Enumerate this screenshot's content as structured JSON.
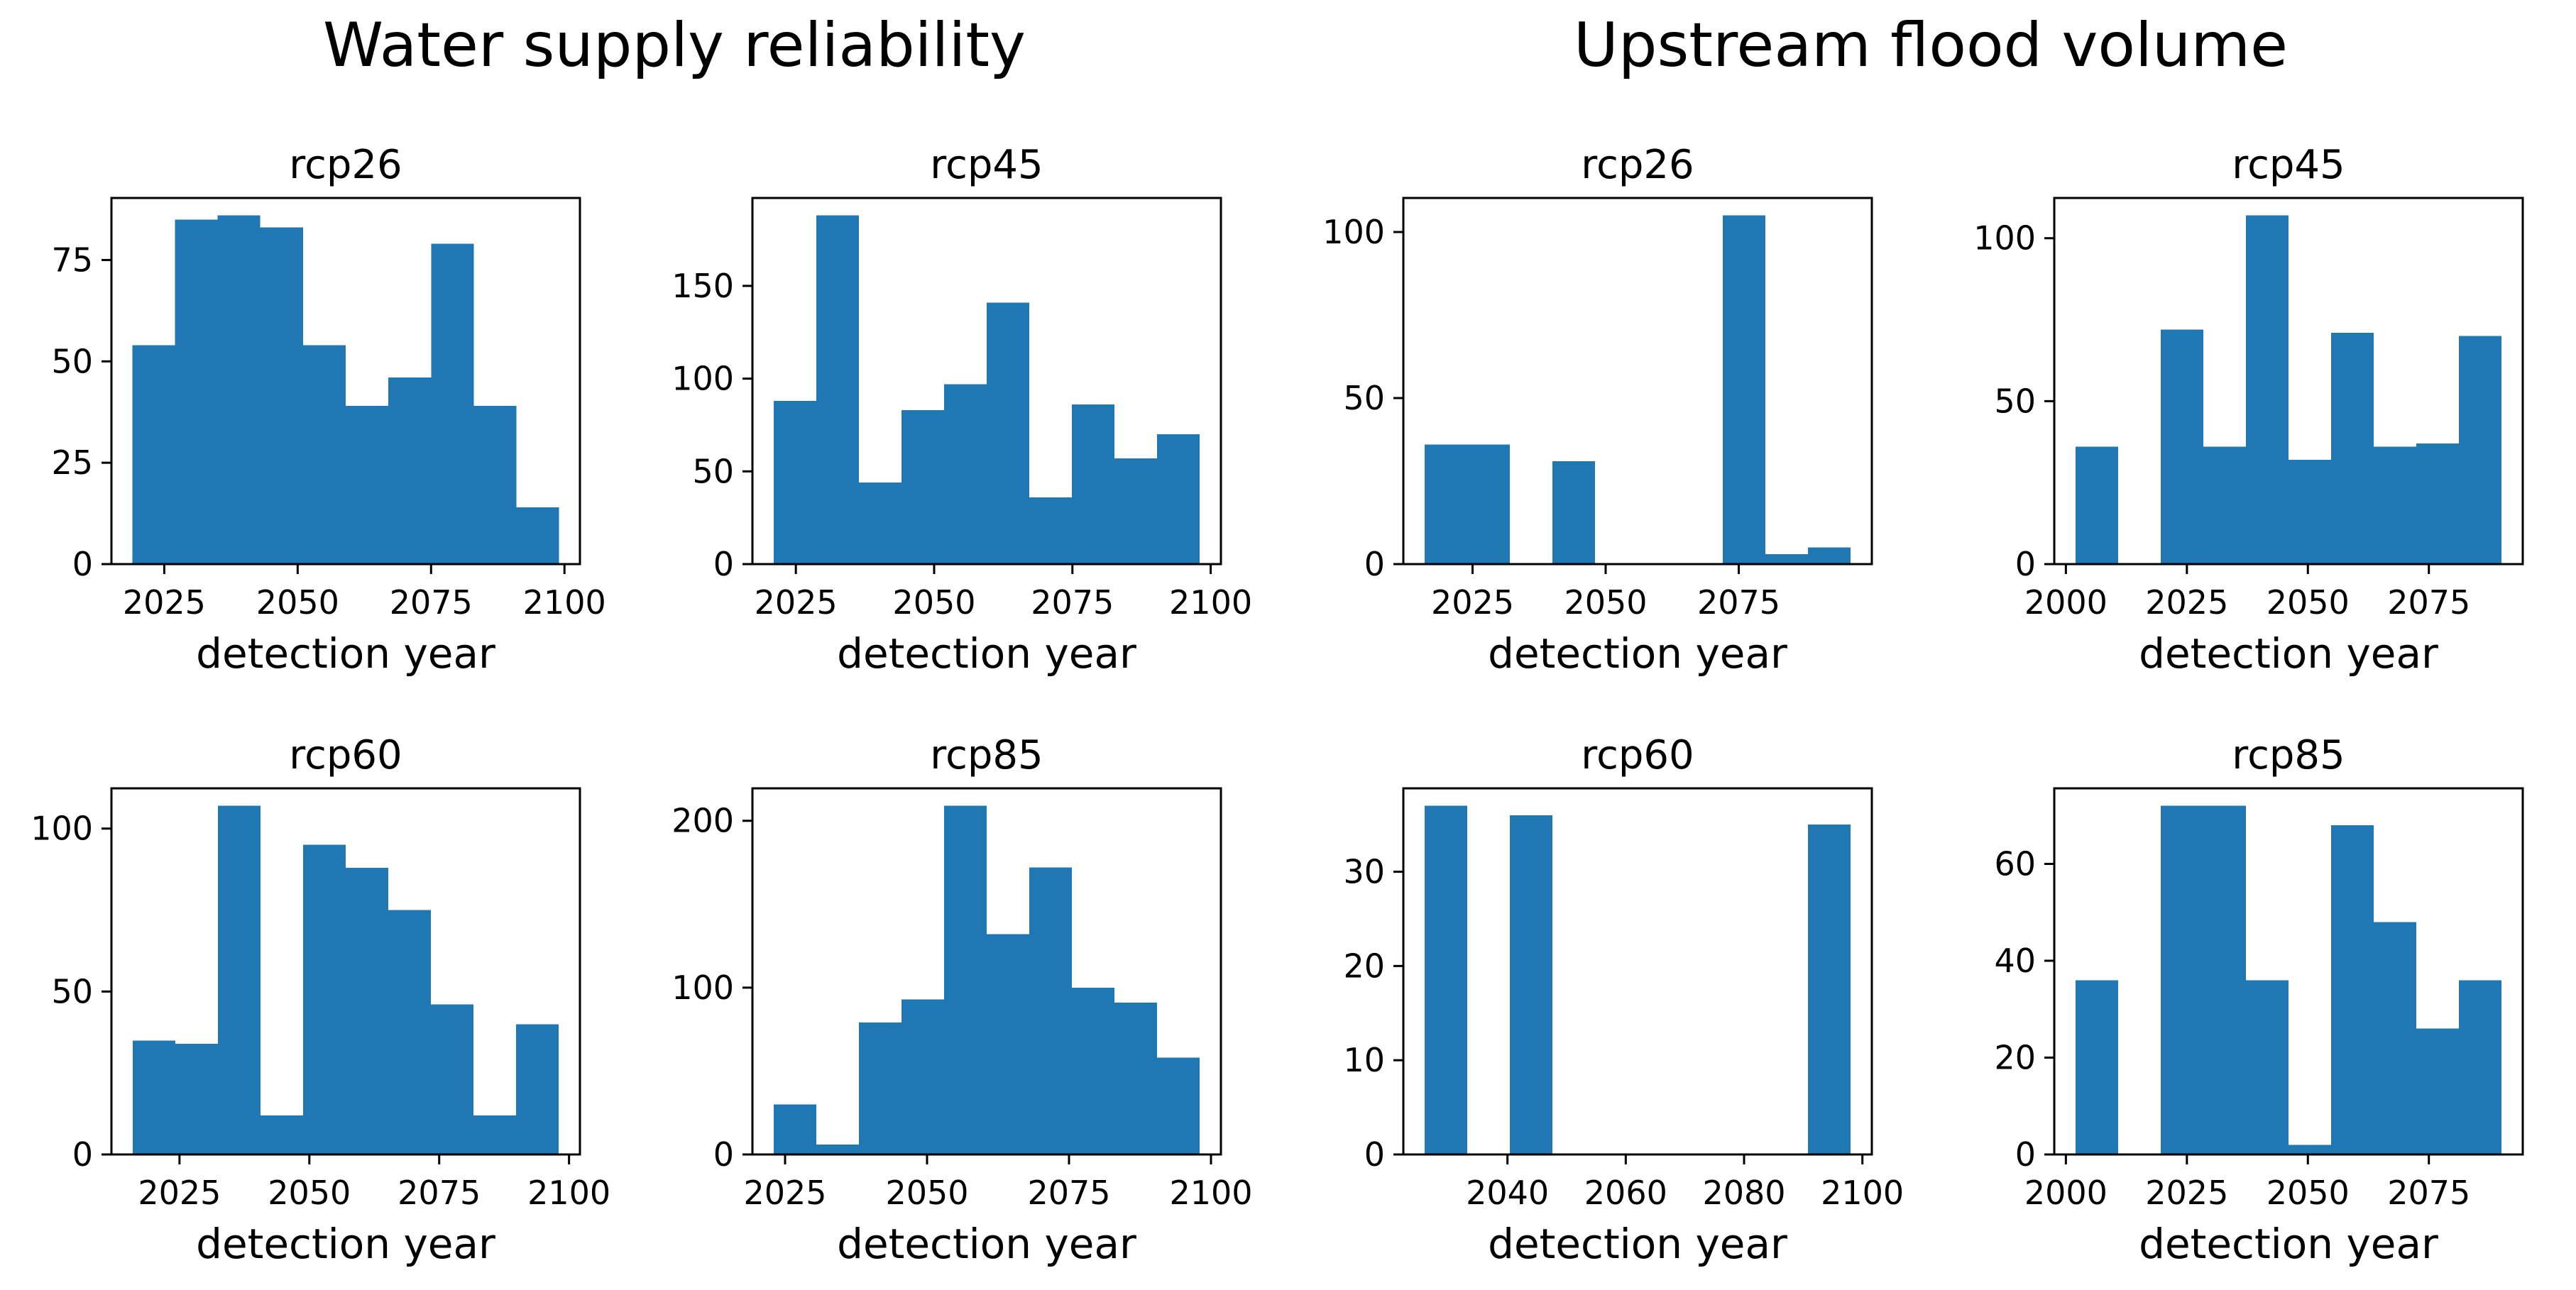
{
  "groups": [
    {
      "title": "Water supply reliability"
    },
    {
      "title": "Upstream flood volume"
    }
  ],
  "chart_data": [
    {
      "type": "bar",
      "group": "Water supply reliability",
      "title": "rcp26",
      "xlabel": "detection year",
      "ylabel": "",
      "bin_edges": [
        2019,
        2027,
        2035,
        2043,
        2051,
        2059,
        2067,
        2075,
        2083,
        2091,
        2099
      ],
      "values": [
        54,
        85,
        86,
        83,
        54,
        39,
        46,
        79,
        39,
        14
      ],
      "xlim": [
        2015.1,
        2102.9
      ],
      "ylim": [
        0,
        90.3
      ],
      "xticks": [
        2025,
        2050,
        2075,
        2100
      ],
      "yticks": [
        0,
        25,
        50,
        75
      ],
      "color": "#1f77b4"
    },
    {
      "type": "bar",
      "group": "Water supply reliability",
      "title": "rcp45",
      "xlabel": "detection year",
      "ylabel": "",
      "bin_edges": [
        2021,
        2028.7,
        2036.4,
        2044.1,
        2051.8,
        2059.5,
        2067.2,
        2074.9,
        2082.6,
        2090.3,
        2098
      ],
      "values": [
        88,
        188,
        44,
        83,
        97,
        141,
        36,
        86,
        57,
        70
      ],
      "xlim": [
        2017.15,
        2101.85
      ],
      "ylim": [
        0,
        197.4
      ],
      "xticks": [
        2025,
        2050,
        2075,
        2100
      ],
      "yticks": [
        0,
        50,
        100,
        150
      ],
      "color": "#1f77b4"
    },
    {
      "type": "bar",
      "group": "Water supply reliability",
      "title": "rcp60",
      "xlabel": "detection year",
      "ylabel": "",
      "bin_edges": [
        2016,
        2024.2,
        2032.4,
        2040.6,
        2048.8,
        2057,
        2065.2,
        2073.4,
        2081.6,
        2089.8,
        2098
      ],
      "values": [
        35,
        34,
        107,
        12,
        95,
        88,
        75,
        46,
        12,
        40
      ],
      "xlim": [
        2011.9,
        2102.1
      ],
      "ylim": [
        0,
        112.35
      ],
      "xticks": [
        2025,
        2050,
        2075,
        2100
      ],
      "yticks": [
        0,
        50,
        100
      ],
      "color": "#1f77b4"
    },
    {
      "type": "bar",
      "group": "Water supply reliability",
      "title": "rcp85",
      "xlabel": "detection year",
      "ylabel": "",
      "bin_edges": [
        2023,
        2030.5,
        2038,
        2045.5,
        2053,
        2060.5,
        2068,
        2075.5,
        2083,
        2090.5,
        2098
      ],
      "values": [
        30,
        6,
        79,
        93,
        209,
        132,
        172,
        100,
        91,
        58
      ],
      "xlim": [
        2019.25,
        2101.75
      ],
      "ylim": [
        0,
        219.45
      ],
      "xticks": [
        2025,
        2050,
        2075,
        2100
      ],
      "yticks": [
        0,
        100,
        200
      ],
      "color": "#1f77b4"
    },
    {
      "type": "bar",
      "group": "Upstream flood volume",
      "title": "rcp26",
      "xlabel": "detection year",
      "ylabel": "",
      "bin_edges": [
        2016,
        2024,
        2032,
        2040,
        2048,
        2056,
        2064,
        2072,
        2080,
        2088,
        2096
      ],
      "values": [
        36,
        36,
        0,
        31,
        0,
        0,
        0,
        105,
        3,
        5
      ],
      "xlim": [
        2012,
        2100
      ],
      "ylim": [
        0,
        110.25
      ],
      "xticks": [
        2025,
        2050,
        2075
      ],
      "yticks": [
        0,
        50,
        100
      ],
      "color": "#1f77b4"
    },
    {
      "type": "bar",
      "group": "Upstream flood volume",
      "title": "rcp45",
      "xlabel": "detection year",
      "ylabel": "",
      "bin_edges": [
        2002,
        2010.8,
        2019.6,
        2028.4,
        2037.2,
        2046,
        2054.8,
        2063.6,
        2072.4,
        2081.2,
        2090
      ],
      "values": [
        36,
        0,
        72,
        36,
        107,
        32,
        71,
        36,
        37,
        70
      ],
      "xlim": [
        1997.6,
        2094.4
      ],
      "ylim": [
        0,
        112.35
      ],
      "xticks": [
        2000,
        2025,
        2050,
        2075
      ],
      "yticks": [
        0,
        50,
        100
      ],
      "color": "#1f77b4"
    },
    {
      "type": "bar",
      "group": "Upstream flood volume",
      "title": "rcp60",
      "xlabel": "detection year",
      "ylabel": "",
      "bin_edges": [
        2026,
        2033.2,
        2040.4,
        2047.6,
        2054.8,
        2062,
        2069.2,
        2076.4,
        2083.6,
        2090.8,
        2098
      ],
      "values": [
        37,
        0,
        36,
        0,
        0,
        0,
        0,
        0,
        0,
        35
      ],
      "xlim": [
        2022.4,
        2101.6
      ],
      "ylim": [
        0,
        38.85
      ],
      "xticks": [
        2040,
        2060,
        2080,
        2100
      ],
      "yticks": [
        0,
        10,
        20,
        30
      ],
      "color": "#1f77b4"
    },
    {
      "type": "bar",
      "group": "Upstream flood volume",
      "title": "rcp85",
      "xlabel": "detection year",
      "ylabel": "",
      "bin_edges": [
        2002,
        2010.8,
        2019.6,
        2028.4,
        2037.2,
        2046,
        2054.8,
        2063.6,
        2072.4,
        2081.2,
        2090
      ],
      "values": [
        36,
        0,
        72,
        72,
        36,
        2,
        68,
        48,
        26,
        36
      ],
      "xlim": [
        1997.6,
        2094.4
      ],
      "ylim": [
        0,
        75.6
      ],
      "xticks": [
        2000,
        2025,
        2050,
        2075
      ],
      "yticks": [
        0,
        20,
        40,
        60
      ],
      "color": "#1f77b4"
    }
  ]
}
